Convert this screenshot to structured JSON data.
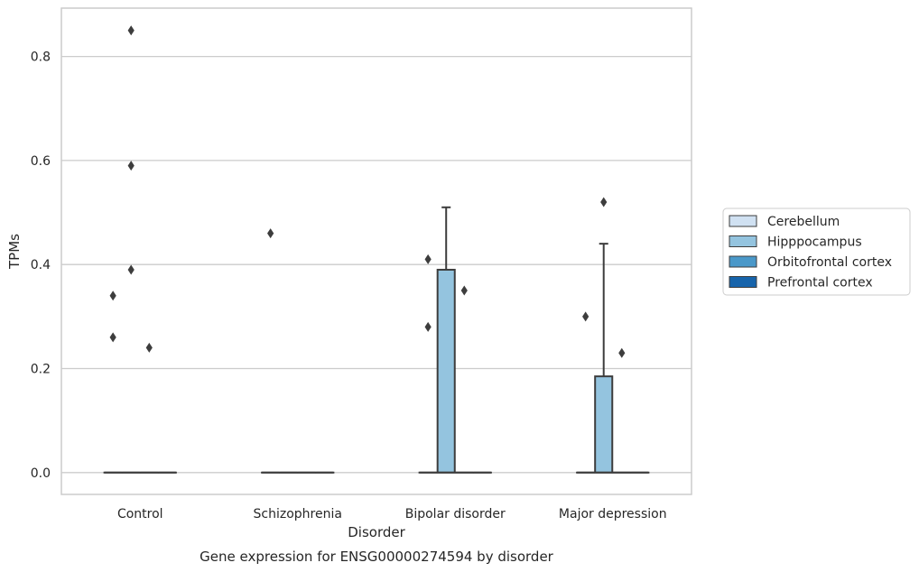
{
  "chart_data": {
    "type": "box",
    "caption": "Gene expression for ENSG00000274594 by disorder",
    "xlabel": "Disorder",
    "ylabel": "TPMs",
    "ylim": [
      -0.042,
      0.893
    ],
    "yticks": [
      0.0,
      0.2,
      0.4,
      0.6,
      0.8
    ],
    "ytick_labels": [
      "0.0",
      "0.2",
      "0.4",
      "0.6",
      "0.8"
    ],
    "grid": true,
    "legend_position": "right",
    "categories": [
      "Control",
      "Schizophrenia",
      "Bipolar disorder",
      "Major depression"
    ],
    "series": [
      {
        "name": "Cerebellum",
        "color": "#d0e1f2"
      },
      {
        "name": "Hipppocampus",
        "color": "#94c4df"
      },
      {
        "name": "Orbitofrontal cortex",
        "color": "#4a98c9"
      },
      {
        "name": "Prefrontal cortex",
        "color": "#1764ab"
      }
    ],
    "boxes": [
      {
        "category": "Control",
        "series": "Cerebellum",
        "q1": 0,
        "median": 0,
        "q3": 0,
        "whisker_high": 0,
        "outliers": [
          0.34,
          0.26
        ]
      },
      {
        "category": "Control",
        "series": "Hipppocampus",
        "q1": 0,
        "median": 0,
        "q3": 0,
        "whisker_high": 0,
        "outliers": [
          0.85,
          0.59,
          0.39
        ]
      },
      {
        "category": "Control",
        "series": "Orbitofrontal cortex",
        "q1": 0,
        "median": 0,
        "q3": 0,
        "whisker_high": 0,
        "outliers": [
          0.24
        ]
      },
      {
        "category": "Control",
        "series": "Prefrontal cortex",
        "q1": 0,
        "median": 0,
        "q3": 0,
        "whisker_high": 0,
        "outliers": []
      },
      {
        "category": "Schizophrenia",
        "series": "Cerebellum",
        "q1": 0,
        "median": 0,
        "q3": 0,
        "whisker_high": 0,
        "outliers": [
          0.46
        ]
      },
      {
        "category": "Schizophrenia",
        "series": "Hipppocampus",
        "q1": 0,
        "median": 0,
        "q3": 0,
        "whisker_high": 0,
        "outliers": []
      },
      {
        "category": "Schizophrenia",
        "series": "Orbitofrontal cortex",
        "q1": 0,
        "median": 0,
        "q3": 0,
        "whisker_high": 0,
        "outliers": []
      },
      {
        "category": "Schizophrenia",
        "series": "Prefrontal cortex",
        "q1": 0,
        "median": 0,
        "q3": 0,
        "whisker_high": 0,
        "outliers": []
      },
      {
        "category": "Bipolar disorder",
        "series": "Cerebellum",
        "q1": 0,
        "median": 0,
        "q3": 0,
        "whisker_high": 0,
        "outliers": [
          0.41,
          0.28
        ]
      },
      {
        "category": "Bipolar disorder",
        "series": "Hipppocampus",
        "q1": 0,
        "median": 0,
        "q3": 0.39,
        "whisker_high": 0.51,
        "outliers": []
      },
      {
        "category": "Bipolar disorder",
        "series": "Orbitofrontal cortex",
        "q1": 0,
        "median": 0,
        "q3": 0,
        "whisker_high": 0,
        "outliers": [
          0.35
        ]
      },
      {
        "category": "Bipolar disorder",
        "series": "Prefrontal cortex",
        "q1": 0,
        "median": 0,
        "q3": 0,
        "whisker_high": 0,
        "outliers": []
      },
      {
        "category": "Major depression",
        "series": "Cerebellum",
        "q1": 0,
        "median": 0,
        "q3": 0,
        "whisker_high": 0,
        "outliers": [
          0.3
        ]
      },
      {
        "category": "Major depression",
        "series": "Hipppocampus",
        "q1": 0,
        "median": 0,
        "q3": 0.185,
        "whisker_high": 0.44,
        "outliers": [
          0.52
        ]
      },
      {
        "category": "Major depression",
        "series": "Orbitofrontal cortex",
        "q1": 0,
        "median": 0,
        "q3": 0,
        "whisker_high": 0,
        "outliers": [
          0.23
        ]
      },
      {
        "category": "Major depression",
        "series": "Prefrontal cortex",
        "q1": 0,
        "median": 0,
        "q3": 0,
        "whisker_high": 0,
        "outliers": []
      }
    ]
  }
}
